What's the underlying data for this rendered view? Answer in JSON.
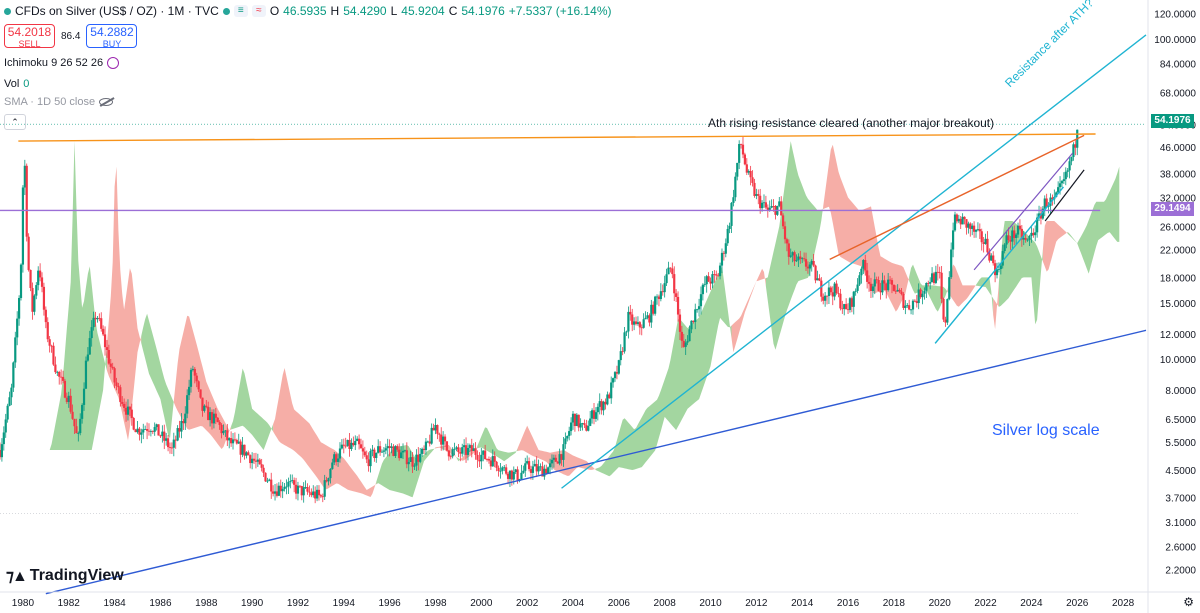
{
  "header": {
    "title": "CFDs on Silver (US$ / OZ) · 1M · TVC",
    "open_key": "O",
    "open": "46.5935",
    "high_key": "H",
    "high": "54.4290",
    "low_key": "L",
    "low": "45.9204",
    "close_key": "C",
    "close": "54.1976",
    "change": "+7.5337 (+16.14%)"
  },
  "trade": {
    "sell_price": "54.2018",
    "sell_label": "SELL",
    "spread": "86.4",
    "buy_price": "54.2882",
    "buy_label": "BUY"
  },
  "indicators": {
    "ichimoku": "Ichimoku 9 26 52 26",
    "vol_label": "Vol",
    "vol_value": "0",
    "sma": "SMA · 1D 50 close"
  },
  "branding": {
    "logo_text": "TradingView"
  },
  "annotations": {
    "breakout": "Ath rising resistance cleared (another major breakout)",
    "resistance": "Resistance after ATH?",
    "log_note": "Silver log scale"
  },
  "colors": {
    "up": "#089981",
    "down": "#f23645",
    "ath_line": "#f7931a",
    "purple_line": "#9c6fd6",
    "trend_blue": "#2f5bd4",
    "channel_cyan": "#1fb4d2",
    "cloud_green": "#7cc577",
    "cloud_red": "#f28b82",
    "orange_line": "#e8642a"
  },
  "chart_data": {
    "type": "candlestick",
    "scale": "log",
    "x_range": [
      1979,
      2029
    ],
    "ylim": [
      1.9,
      125
    ],
    "x_ticks": [
      "1980",
      "1982",
      "1984",
      "1986",
      "1988",
      "1990",
      "1992",
      "1994",
      "1996",
      "1998",
      "2000",
      "2002",
      "2004",
      "2006",
      "2008",
      "2010",
      "2012",
      "2014",
      "2016",
      "2018",
      "2020",
      "2022",
      "2024",
      "2026",
      "2028"
    ],
    "y_ticks": [
      "120.0000",
      "100.0000",
      "84.0000",
      "68.0000",
      "54.0000",
      "46.0000",
      "38.0000",
      "32.0000",
      "26.0000",
      "22.0000",
      "18.0000",
      "15.0000",
      "12.0000",
      "10.0000",
      "8.0000",
      "6.5000",
      "5.5000",
      "4.5000",
      "3.7000",
      "3.1000",
      "2.6000",
      "2.2000"
    ],
    "last_price": "54.1976",
    "level_price": "29.1494",
    "price_path": [
      [
        1979.0,
        5.2
      ],
      [
        1979.5,
        8.0
      ],
      [
        1979.9,
        18.0
      ],
      [
        1980.05,
        48.0
      ],
      [
        1980.2,
        21.0
      ],
      [
        1980.4,
        14.0
      ],
      [
        1980.7,
        20.0
      ],
      [
        1981.0,
        12.5
      ],
      [
        1981.5,
        9.0
      ],
      [
        1982.0,
        7.5
      ],
      [
        1982.4,
        5.5
      ],
      [
        1982.8,
        10.5
      ],
      [
        1983.2,
        14.0
      ],
      [
        1983.6,
        11.0
      ],
      [
        1984.0,
        8.5
      ],
      [
        1984.5,
        7.0
      ],
      [
        1985.0,
        6.0
      ],
      [
        1985.6,
        6.2
      ],
      [
        1986.0,
        5.8
      ],
      [
        1986.5,
        5.2
      ],
      [
        1987.0,
        6.5
      ],
      [
        1987.4,
        9.5
      ],
      [
        1987.8,
        7.0
      ],
      [
        1988.5,
        6.3
      ],
      [
        1989.0,
        5.5
      ],
      [
        1989.6,
        5.2
      ],
      [
        1990.0,
        4.9
      ],
      [
        1990.6,
        4.3
      ],
      [
        1991.0,
        3.9
      ],
      [
        1991.5,
        4.1
      ],
      [
        1992.0,
        3.9
      ],
      [
        1992.6,
        3.8
      ],
      [
        1993.0,
        3.7
      ],
      [
        1993.5,
        4.8
      ],
      [
        1994.0,
        5.3
      ],
      [
        1994.6,
        5.4
      ],
      [
        1995.0,
        4.8
      ],
      [
        1995.5,
        5.2
      ],
      [
        1996.0,
        5.3
      ],
      [
        1996.6,
        5.0
      ],
      [
        1997.0,
        4.8
      ],
      [
        1997.5,
        5.1
      ],
      [
        1998.0,
        6.2
      ],
      [
        1998.5,
        5.2
      ],
      [
        1999.0,
        5.1
      ],
      [
        1999.6,
        5.2
      ],
      [
        2000.0,
        5.0
      ],
      [
        2000.6,
        4.8
      ],
      [
        2001.0,
        4.5
      ],
      [
        2001.6,
        4.3
      ],
      [
        2002.0,
        4.6
      ],
      [
        2002.6,
        4.5
      ],
      [
        2003.0,
        4.6
      ],
      [
        2003.6,
        5.2
      ],
      [
        2004.0,
        6.6
      ],
      [
        2004.5,
        6.0
      ],
      [
        2005.0,
        7.0
      ],
      [
        2005.5,
        7.5
      ],
      [
        2006.0,
        9.5
      ],
      [
        2006.4,
        13.5
      ],
      [
        2006.8,
        12.5
      ],
      [
        2007.3,
        13.5
      ],
      [
        2008.0,
        17.5
      ],
      [
        2008.3,
        19.5
      ],
      [
        2008.8,
        10.5
      ],
      [
        2009.3,
        14.0
      ],
      [
        2009.8,
        17.5
      ],
      [
        2010.3,
        18.0
      ],
      [
        2010.8,
        26.0
      ],
      [
        2011.3,
        48.0
      ],
      [
        2011.6,
        38.0
      ],
      [
        2012.0,
        32.0
      ],
      [
        2012.5,
        29.0
      ],
      [
        2013.0,
        30.0
      ],
      [
        2013.4,
        21.0
      ],
      [
        2013.9,
        20.0
      ],
      [
        2014.4,
        19.5
      ],
      [
        2014.9,
        16.0
      ],
      [
        2015.4,
        16.5
      ],
      [
        2015.9,
        14.0
      ],
      [
        2016.3,
        16.0
      ],
      [
        2016.6,
        20.0
      ],
      [
        2017.0,
        17.0
      ],
      [
        2017.5,
        17.0
      ],
      [
        2018.0,
        16.8
      ],
      [
        2018.6,
        14.5
      ],
      [
        2019.0,
        15.5
      ],
      [
        2019.6,
        18.0
      ],
      [
        2020.0,
        18.0
      ],
      [
        2020.2,
        12.0
      ],
      [
        2020.6,
        27.0
      ],
      [
        2021.0,
        27.0
      ],
      [
        2021.5,
        25.0
      ],
      [
        2022.0,
        23.0
      ],
      [
        2022.5,
        18.5
      ],
      [
        2022.9,
        23.5
      ],
      [
        2023.4,
        25.0
      ],
      [
        2023.8,
        23.0
      ],
      [
        2024.2,
        26.0
      ],
      [
        2024.6,
        31.0
      ],
      [
        2025.0,
        31.0
      ],
      [
        2025.5,
        37.0
      ],
      [
        2025.9,
        46.6
      ],
      [
        2026.0,
        54.2
      ]
    ],
    "overlays": [
      {
        "name": "ath_resistance",
        "color": "#f7931a",
        "points": [
          [
            1979.8,
            48.0
          ],
          [
            2026.8,
            50.5
          ]
        ]
      },
      {
        "name": "horizontal_level",
        "color": "#9c6fd6",
        "points": [
          [
            1979.0,
            29.15
          ],
          [
            2027.0,
            29.15
          ]
        ]
      },
      {
        "name": "long_trendline",
        "color": "#2f5bd4",
        "points": [
          [
            1981.0,
            1.85
          ],
          [
            2029.0,
            12.3
          ]
        ]
      },
      {
        "name": "channel_upper",
        "color": "#1fb4d2",
        "points": [
          [
            2003.5,
            3.95
          ],
          [
            2029.0,
            103.0
          ]
        ]
      },
      {
        "name": "channel_lower",
        "color": "#1fb4d2",
        "points": [
          [
            2019.8,
            11.2
          ],
          [
            2025.4,
            34.5
          ]
        ]
      },
      {
        "name": "orange_trend",
        "color": "#e8642a",
        "points": [
          [
            2015.2,
            20.5
          ],
          [
            2026.3,
            50.0
          ]
        ]
      },
      {
        "name": "purple_wedge",
        "color": "#7e57c2",
        "points": [
          [
            2021.5,
            19.0
          ],
          [
            2025.8,
            44.0
          ]
        ]
      },
      {
        "name": "black_wedge",
        "color": "#131722",
        "points": [
          [
            2024.6,
            27.0
          ],
          [
            2026.3,
            39.0
          ]
        ]
      }
    ]
  }
}
